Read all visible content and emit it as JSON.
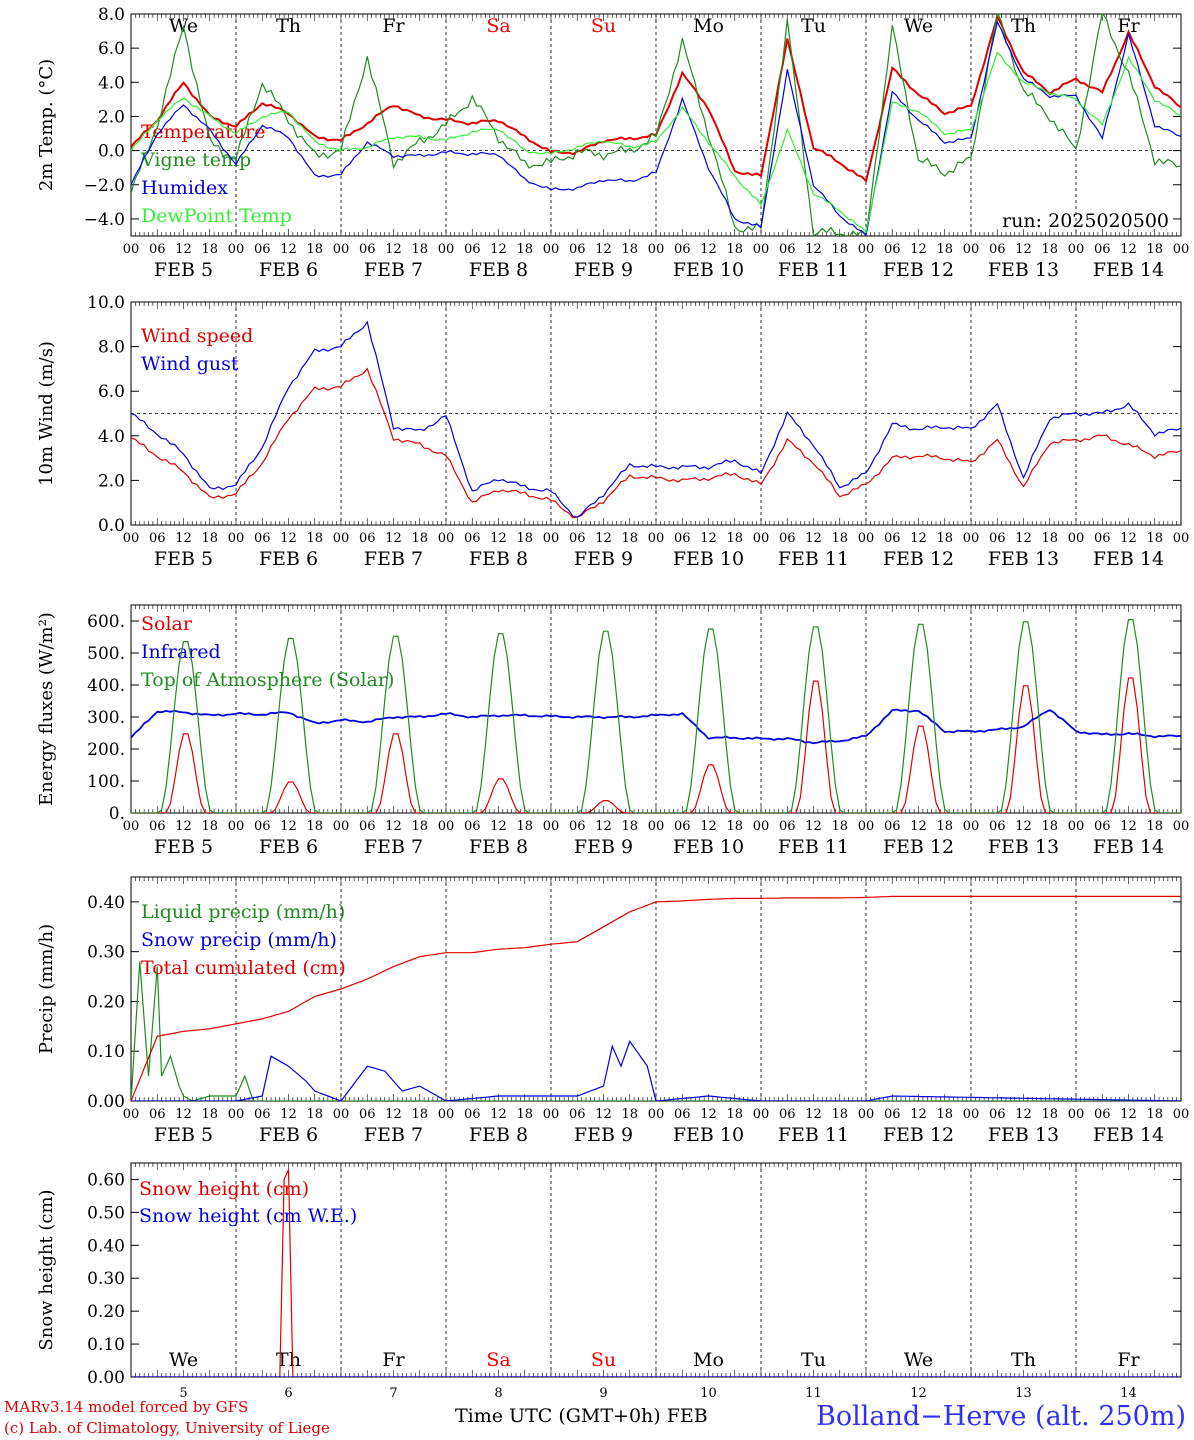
{
  "footer": {
    "model": "MARv3.14 model forced by GFS",
    "lab": "(c) Lab. of Climatology, University of Liege",
    "xaxis_title": "Time UTC (GMT+0h) FEB",
    "location": "Bolland−Herve (alt. 250m)"
  },
  "colors": {
    "red": "#e00000",
    "darkgreen": "#1e8c1e",
    "blue": "#0000e0",
    "lightgreen": "#33ee33",
    "weekend": "#ff0000"
  },
  "timeline": {
    "days": [
      "FEB  5",
      "FEB  6",
      "FEB  7",
      "FEB  8",
      "FEB  9",
      "FEB 10",
      "FEB 11",
      "FEB 12",
      "FEB 13",
      "FEB 14"
    ],
    "weekdays": [
      "We",
      "Th",
      "Fr",
      "Sa",
      "Su",
      "Mo",
      "Tu",
      "We",
      "Th",
      "Fr"
    ],
    "weekend": [
      false,
      false,
      false,
      true,
      true,
      false,
      false,
      false,
      false,
      false
    ],
    "hour_ticks": [
      "00",
      "06",
      "12",
      "18"
    ],
    "last_tick": "00",
    "snow_panel_days": [
      "5",
      "6",
      "7",
      "8",
      "9",
      "10",
      "11",
      "12",
      "13",
      "14"
    ]
  },
  "chart_data": [
    {
      "type": "line",
      "ylabel": "2m Temp. (°C)",
      "ylim": [
        -5,
        8
      ],
      "yticks": [
        "8.0",
        "6.0",
        "4.0",
        "2.0",
        "0.0",
        "−2.0",
        "−4.0"
      ],
      "ytick_values": [
        8,
        6,
        4,
        2,
        0,
        -2,
        -4
      ],
      "ref_line": 0,
      "annotation": "run: 2025020500",
      "x_unit": "hours since FEB 5 00 UTC",
      "series": [
        {
          "name": "Temperature",
          "color": "red",
          "x": [
            0,
            6,
            12,
            18,
            24,
            30,
            36,
            42,
            48,
            54,
            60,
            66,
            72,
            78,
            84,
            90,
            96,
            102,
            108,
            114,
            120,
            126,
            132,
            138,
            144,
            150,
            156,
            162,
            168,
            174,
            180,
            186,
            192,
            198,
            204,
            210,
            216,
            222,
            228,
            234,
            240
          ],
          "y": [
            0.2,
            1.8,
            4.0,
            2.0,
            1.4,
            2.8,
            2.2,
            0.8,
            0.6,
            1.6,
            2.7,
            2.0,
            1.8,
            1.6,
            1.8,
            0.8,
            -0.1,
            -0.1,
            0.6,
            0.7,
            0.9,
            4.5,
            2.5,
            -1.2,
            -1.5,
            6.5,
            0.2,
            -0.7,
            -1.8,
            4.8,
            3.3,
            2.2,
            2.6,
            7.8,
            4.6,
            3.4,
            4.2,
            3.4,
            6.9,
            3.8,
            2.5
          ]
        },
        {
          "name": "Vigne temp",
          "color": "darkgreen",
          "x": [
            0,
            6,
            12,
            18,
            24,
            30,
            36,
            42,
            48,
            54,
            60,
            66,
            72,
            78,
            84,
            90,
            96,
            102,
            108,
            114,
            120,
            126,
            132,
            138,
            144,
            150,
            156,
            162,
            168,
            174,
            180,
            186,
            192,
            198,
            204,
            210,
            216,
            222,
            228,
            234,
            240
          ],
          "y": [
            -2.5,
            1.5,
            7.3,
            0.5,
            -0.5,
            4.0,
            1.8,
            -0.3,
            0.0,
            5.5,
            -0.7,
            0.5,
            1.5,
            3.1,
            0.8,
            -0.8,
            -0.7,
            -0.1,
            -0.2,
            0.0,
            0.8,
            6.4,
            1.0,
            -4.5,
            -4.6,
            7.5,
            -4.8,
            -4.8,
            -5.0,
            7.2,
            -0.5,
            -1.3,
            -0.5,
            8.0,
            3.5,
            2.0,
            0.0,
            8.0,
            4.5,
            -0.5,
            -1.0
          ]
        },
        {
          "name": "Humidex",
          "color": "blue",
          "x": [
            0,
            6,
            12,
            18,
            24,
            30,
            36,
            42,
            48,
            54,
            60,
            66,
            72,
            78,
            84,
            90,
            96,
            102,
            108,
            114,
            120,
            126,
            132,
            138,
            144,
            150,
            156,
            162,
            168,
            174,
            180,
            186,
            192,
            198,
            204,
            210,
            216,
            222,
            228,
            234,
            240
          ],
          "y": [
            -2.0,
            1.0,
            2.7,
            1.2,
            -0.8,
            1.5,
            0.8,
            -1.5,
            -1.4,
            0.5,
            -0.3,
            -0.3,
            -0.1,
            -0.2,
            -0.2,
            -1.7,
            -2.3,
            -2.2,
            -1.7,
            -1.8,
            -1.3,
            3.0,
            -1.0,
            -4.0,
            -4.5,
            4.7,
            -2.0,
            -3.8,
            -5.0,
            3.4,
            1.8,
            0.5,
            0.7,
            7.5,
            4.2,
            3.2,
            3.2,
            0.7,
            6.8,
            1.5,
            0.8
          ]
        },
        {
          "name": "DewPoint Temp",
          "color": "lightgreen",
          "x": [
            0,
            6,
            12,
            18,
            24,
            30,
            36,
            42,
            48,
            54,
            60,
            66,
            72,
            78,
            84,
            90,
            96,
            102,
            108,
            114,
            120,
            126,
            132,
            138,
            144,
            150,
            156,
            162,
            168,
            174,
            180,
            186,
            192,
            198,
            204,
            210,
            216,
            222,
            228,
            234,
            240
          ],
          "y": [
            0.0,
            1.8,
            3.1,
            2.0,
            1.0,
            2.0,
            2.3,
            0.5,
            0.0,
            0.2,
            0.8,
            0.8,
            0.6,
            1.1,
            1.3,
            0.0,
            -0.2,
            0.2,
            0.6,
            0.2,
            0.5,
            2.5,
            0.5,
            -1.5,
            -3.2,
            1.2,
            -2.5,
            -3.5,
            -4.8,
            2.8,
            2.3,
            1.0,
            1.2,
            5.7,
            4.0,
            3.4,
            3.0,
            1.5,
            5.4,
            3.0,
            2.0
          ]
        }
      ]
    },
    {
      "type": "line",
      "ylabel": "10m Wind (m/s)",
      "ylim": [
        0,
        10
      ],
      "yticks": [
        "10.0",
        "8.0",
        "6.0",
        "4.0",
        "2.0",
        "0.0"
      ],
      "ytick_values": [
        10,
        8,
        6,
        4,
        2,
        0
      ],
      "ref_line": 5,
      "x_unit": "hours since FEB 5 00 UTC",
      "series": [
        {
          "name": "Wind speed",
          "color": "red",
          "x": [
            0,
            6,
            12,
            18,
            24,
            30,
            36,
            42,
            48,
            54,
            60,
            66,
            72,
            78,
            84,
            90,
            96,
            102,
            108,
            114,
            120,
            126,
            132,
            138,
            144,
            150,
            156,
            162,
            168,
            174,
            180,
            186,
            192,
            198,
            204,
            210,
            216,
            222,
            228,
            234,
            240
          ],
          "y": [
            3.9,
            3.1,
            2.4,
            1.2,
            1.4,
            2.8,
            4.8,
            6.1,
            6.2,
            7.0,
            3.9,
            3.6,
            3.1,
            1.0,
            1.6,
            1.4,
            1.1,
            0.3,
            1.1,
            2.2,
            2.1,
            2.0,
            2.1,
            2.3,
            1.8,
            3.8,
            2.8,
            1.3,
            1.8,
            3.0,
            3.1,
            3.0,
            2.8,
            3.8,
            1.7,
            3.7,
            3.8,
            4.0,
            3.6,
            3.1,
            3.3
          ]
        },
        {
          "name": "Wind gust",
          "color": "blue",
          "x": [
            0,
            6,
            12,
            18,
            24,
            30,
            36,
            42,
            48,
            54,
            60,
            66,
            72,
            78,
            84,
            90,
            96,
            102,
            108,
            114,
            120,
            126,
            132,
            138,
            144,
            150,
            156,
            162,
            168,
            174,
            180,
            186,
            192,
            198,
            204,
            210,
            216,
            222,
            228,
            234,
            240
          ],
          "y": [
            5.0,
            4.1,
            3.2,
            1.6,
            1.8,
            3.5,
            6.2,
            7.8,
            8.0,
            9.1,
            4.4,
            4.2,
            4.9,
            1.5,
            2.1,
            1.7,
            1.5,
            0.3,
            1.4,
            2.7,
            2.6,
            2.6,
            2.6,
            2.9,
            2.3,
            5.0,
            3.6,
            1.7,
            2.3,
            4.5,
            4.3,
            4.4,
            4.3,
            5.4,
            2.1,
            4.8,
            5.0,
            5.0,
            5.4,
            4.1,
            4.3
          ]
        }
      ]
    },
    {
      "type": "line",
      "ylabel": "Energy fluxes (W/m²)",
      "ylim": [
        0,
        650
      ],
      "yticks": [
        "600.",
        "500.",
        "400.",
        "300.",
        "200.",
        "100.",
        "0."
      ],
      "ytick_values": [
        600,
        500,
        400,
        300,
        200,
        100,
        0
      ],
      "x_unit": "hours since FEB 5 00 UTC",
      "series": [
        {
          "name": "Solar",
          "color": "red",
          "diurnal_peaks": [
            255,
            100,
            255,
            110,
            40,
            155,
            425,
            280,
            410,
            435
          ]
        },
        {
          "name": "Infrared",
          "color": "blue",
          "x": [
            0,
            6,
            12,
            18,
            24,
            30,
            36,
            42,
            48,
            54,
            60,
            66,
            72,
            78,
            84,
            90,
            96,
            102,
            108,
            114,
            120,
            126,
            132,
            138,
            144,
            150,
            156,
            162,
            168,
            174,
            180,
            186,
            192,
            198,
            204,
            210,
            216,
            222,
            228,
            234,
            240
          ],
          "y": [
            235,
            318,
            315,
            305,
            310,
            308,
            315,
            280,
            290,
            285,
            300,
            300,
            310,
            300,
            305,
            305,
            302,
            300,
            300,
            300,
            305,
            310,
            235,
            235,
            232,
            232,
            220,
            225,
            240,
            320,
            320,
            255,
            255,
            260,
            270,
            325,
            255,
            245,
            248,
            240,
            240
          ]
        },
        {
          "name": "Top of Atmosphere (Solar)",
          "color": "darkgreen",
          "diurnal_peaks": [
            545,
            555,
            562,
            570,
            578,
            585,
            592,
            600,
            608,
            615
          ]
        }
      ]
    },
    {
      "type": "line",
      "ylabel": "Precip (mm/h)",
      "ylim": [
        0,
        0.45
      ],
      "yticks": [
        "0.40",
        "0.30",
        "0.20",
        "0.10",
        "0.00"
      ],
      "ytick_values": [
        0.4,
        0.3,
        0.2,
        0.1,
        0.0
      ],
      "x_unit": "hours since FEB 5 00 UTC",
      "series": [
        {
          "name": "Liquid precip (mm/h)",
          "color": "darkgreen",
          "x": [
            0,
            2,
            4,
            6,
            7,
            9,
            11,
            12,
            14,
            18,
            24,
            26,
            28,
            36,
            48,
            72,
            240
          ],
          "y": [
            0.0,
            0.28,
            0.05,
            0.27,
            0.05,
            0.09,
            0.03,
            0.01,
            0.0,
            0.01,
            0.01,
            0.05,
            0.0,
            0.0,
            0.0,
            0.0,
            0.0
          ]
        },
        {
          "name": "Snow precip (mm/h)",
          "color": "blue",
          "x": [
            0,
            24,
            30,
            32,
            36,
            40,
            42,
            48,
            54,
            58,
            62,
            66,
            72,
            84,
            96,
            102,
            108,
            110,
            112,
            114,
            118,
            120,
            132,
            144,
            168,
            174,
            240
          ],
          "y": [
            0.0,
            0.0,
            0.01,
            0.09,
            0.07,
            0.04,
            0.02,
            0.0,
            0.07,
            0.06,
            0.02,
            0.03,
            0.0,
            0.01,
            0.01,
            0.01,
            0.03,
            0.11,
            0.07,
            0.12,
            0.07,
            0.0,
            0.01,
            0.0,
            0.0,
            0.01,
            0.0
          ]
        },
        {
          "name": "Total cumulated (cm)",
          "color": "red",
          "x": [
            0,
            6,
            12,
            18,
            24,
            30,
            36,
            42,
            48,
            54,
            60,
            66,
            72,
            78,
            84,
            90,
            96,
            102,
            108,
            114,
            120,
            126,
            132,
            138,
            144,
            150,
            156,
            162,
            168,
            174,
            180,
            186,
            192,
            198,
            204,
            210,
            216,
            222,
            228,
            234,
            240
          ],
          "y": [
            0.0,
            0.13,
            0.14,
            0.145,
            0.155,
            0.165,
            0.18,
            0.21,
            0.225,
            0.245,
            0.27,
            0.29,
            0.298,
            0.298,
            0.305,
            0.308,
            0.315,
            0.32,
            0.35,
            0.38,
            0.4,
            0.402,
            0.405,
            0.407,
            0.407,
            0.408,
            0.408,
            0.408,
            0.409,
            0.411,
            0.411,
            0.411,
            0.411,
            0.411,
            0.411,
            0.411,
            0.411,
            0.411,
            0.411,
            0.411,
            0.411
          ]
        }
      ]
    },
    {
      "type": "line",
      "ylabel": "Snow height (cm)",
      "ylim": [
        0,
        0.65
      ],
      "yticks": [
        "0.60",
        "0.50",
        "0.40",
        "0.30",
        "0.20",
        "0.10",
        "0.00"
      ],
      "ytick_values": [
        0.6,
        0.5,
        0.4,
        0.3,
        0.2,
        0.1,
        0.0
      ],
      "x_unit": "hours since FEB 5 00 UTC",
      "series": [
        {
          "name": "Snow height (cm)",
          "color": "red",
          "x": [
            0,
            34,
            35,
            36,
            37,
            240
          ],
          "y": [
            0,
            0,
            0.6,
            0.63,
            0,
            0
          ]
        },
        {
          "name": "Snow height (cm W.E.)",
          "color": "blue",
          "x": [
            0,
            240
          ],
          "y": [
            0,
            0
          ]
        }
      ]
    }
  ]
}
